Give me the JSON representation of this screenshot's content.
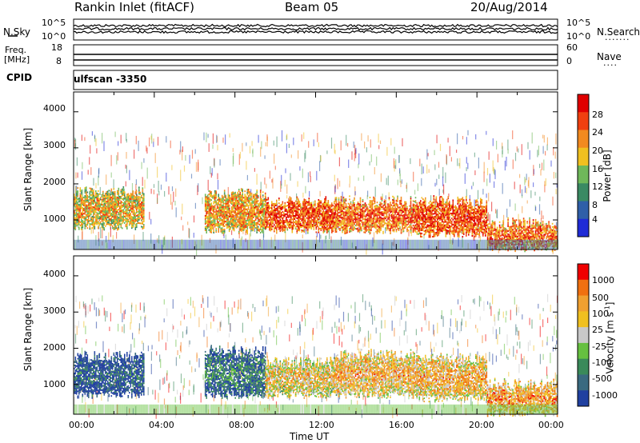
{
  "header": {
    "title": "Rankin Inlet (fitACF)",
    "beam": "Beam 05",
    "date": "20/Aug/2014"
  },
  "top_panels": {
    "nsky_label": "N.Sky",
    "nsearch_label": "N.Search",
    "nsky_ticks": [
      "10^5",
      "10^0"
    ],
    "nsearch_ticks": [
      "10^5",
      "10^0"
    ],
    "freq_label": "Freq.",
    "freq_unit": "[MHz]",
    "freq_ticks": [
      "18",
      "8"
    ],
    "nave_label": "Nave",
    "nave_ticks": [
      "60",
      "0"
    ],
    "cpid_label": "CPID",
    "cpid_value": "ulfscan -3350"
  },
  "chart_data": [
    {
      "type": "heatmap",
      "name_shown": "",
      "ylabel": "Slant Range [km]",
      "xlabel": "",
      "ylim": [
        180,
        4550
      ],
      "y_ticks": [
        "4000",
        "3000",
        "2000",
        "1000"
      ],
      "colorbar_label": "Power [dB]",
      "colorbar_ticks": [
        "28",
        "24",
        "20",
        "16",
        "12",
        "8",
        "4"
      ],
      "colorbar_colors": [
        "#1f2bd6",
        "#2f5fa8",
        "#3a8a63",
        "#6fb85a",
        "#f0c020",
        "#f28a20",
        "#f04010",
        "#e00000"
      ],
      "x_ticks": [
        "00:00",
        "04:00",
        "08:00",
        "12:00",
        "16:00",
        "20:00",
        "00:00"
      ],
      "bands": [
        {
          "start_h": 0.0,
          "end_h": 3.5,
          "low_km": 800,
          "high_km": 1750,
          "level": 0.65
        },
        {
          "start_h": 6.5,
          "end_h": 9.5,
          "low_km": 700,
          "high_km": 1700,
          "level": 0.7
        },
        {
          "start_h": 9.5,
          "end_h": 13.0,
          "low_km": 700,
          "high_km": 1500,
          "level": 0.85
        },
        {
          "start_h": 13.0,
          "end_h": 17.0,
          "low_km": 700,
          "high_km": 1500,
          "level": 0.8
        },
        {
          "start_h": 17.0,
          "end_h": 20.5,
          "low_km": 600,
          "high_km": 1500,
          "level": 0.85
        },
        {
          "start_h": 20.5,
          "end_h": 24.0,
          "low_km": 200,
          "high_km": 900,
          "level": 0.8
        }
      ]
    },
    {
      "type": "heatmap",
      "name_shown": "",
      "ylabel": "Slant Range [km]",
      "xlabel": "Time UT",
      "ylim": [
        180,
        4550
      ],
      "y_ticks": [
        "4000",
        "3000",
        "2000",
        "1000"
      ],
      "colorbar_label": "Velocity [m s^-1]",
      "colorbar_ticks": [
        "1000",
        "500",
        "100",
        "25",
        "-25",
        "-100",
        "-500",
        "-1000"
      ],
      "colorbar_colors": [
        "#2040a0",
        "#3a6a80",
        "#3a8a5a",
        "#66c040",
        "#c8c8c8",
        "#f0c020",
        "#f0a030",
        "#f07010",
        "#f00000"
      ],
      "x_ticks": [
        "00:00",
        "04:00",
        "08:00",
        "12:00",
        "16:00",
        "20:00",
        "00:00"
      ],
      "bands": [
        {
          "start_h": 0.0,
          "end_h": 3.5,
          "low_km": 700,
          "high_km": 1750,
          "level": 0.15
        },
        {
          "start_h": 6.5,
          "end_h": 9.5,
          "low_km": 700,
          "high_km": 1900,
          "level": 0.25
        },
        {
          "start_h": 9.5,
          "end_h": 13.0,
          "low_km": 700,
          "high_km": 1600,
          "level": 0.65
        },
        {
          "start_h": 13.0,
          "end_h": 17.0,
          "low_km": 700,
          "high_km": 1800,
          "level": 0.7
        },
        {
          "start_h": 17.0,
          "end_h": 20.5,
          "low_km": 600,
          "high_km": 1700,
          "level": 0.7
        },
        {
          "start_h": 20.5,
          "end_h": 24.0,
          "low_km": 200,
          "high_km": 1000,
          "level": 0.75
        }
      ]
    }
  ]
}
